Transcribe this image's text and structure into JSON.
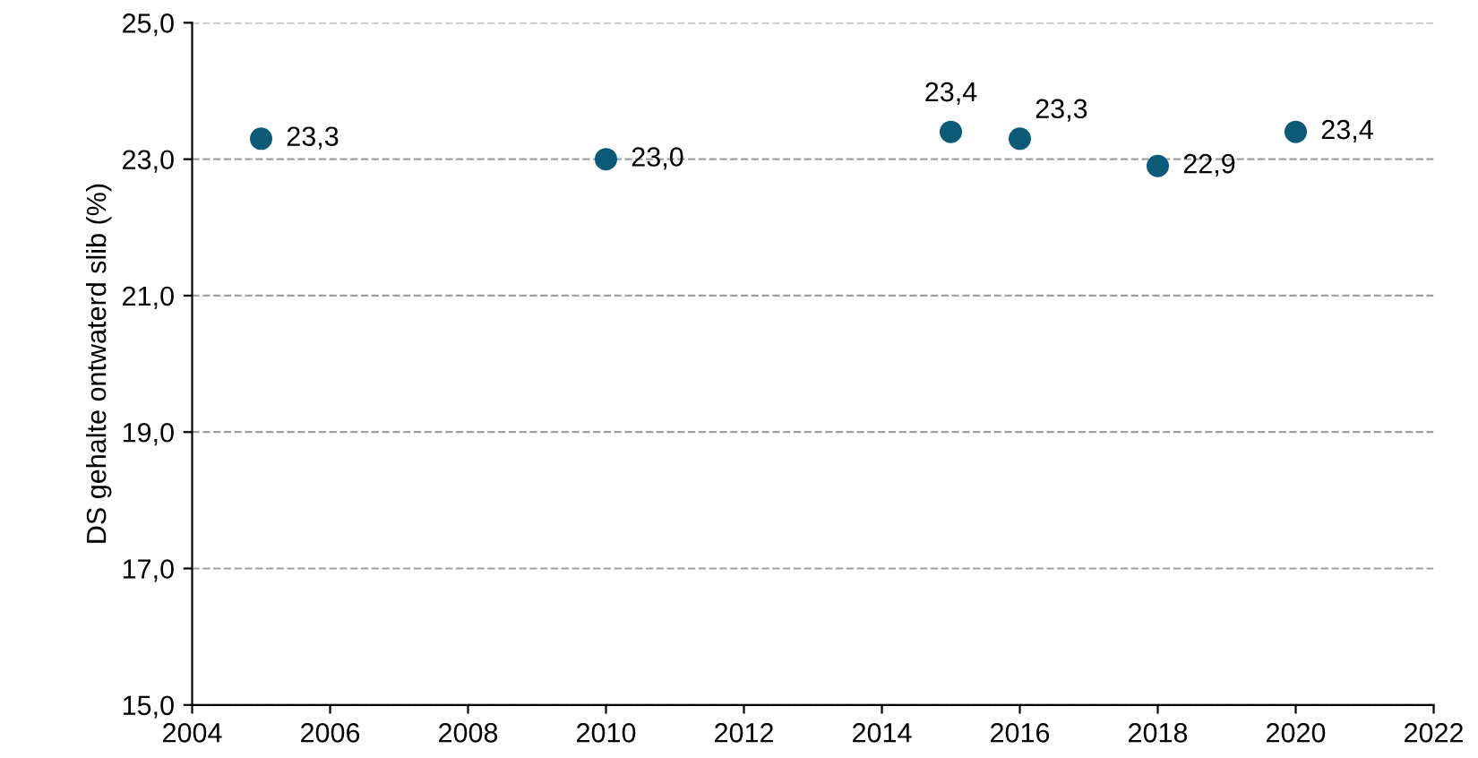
{
  "chart_data": {
    "type": "scatter",
    "ylabel": "DS gehalte ontwaterd slib (%)",
    "x": [
      2005,
      2010,
      2015,
      2016,
      2018,
      2020
    ],
    "values": [
      23.3,
      23.0,
      23.4,
      23.3,
      22.9,
      23.4
    ],
    "value_labels": [
      "23,3",
      "23,0",
      "23,4",
      "23,3",
      "22,9",
      "23,4"
    ],
    "color": "#0b5a78",
    "marker": "circle",
    "grid": "y",
    "xlim": [
      2004,
      2022
    ],
    "xticks": [
      2004,
      2006,
      2008,
      2010,
      2012,
      2014,
      2016,
      2018,
      2020,
      2022
    ],
    "ylim": [
      15,
      25
    ],
    "yticks": [
      {
        "value": 15,
        "label": "15,0"
      },
      {
        "value": 17,
        "label": "17,0"
      },
      {
        "value": 19,
        "label": "19,0"
      },
      {
        "value": 21,
        "label": "21,0"
      },
      {
        "value": 23,
        "label": "23,0"
      },
      {
        "value": 25,
        "label": "25,0"
      }
    ]
  }
}
